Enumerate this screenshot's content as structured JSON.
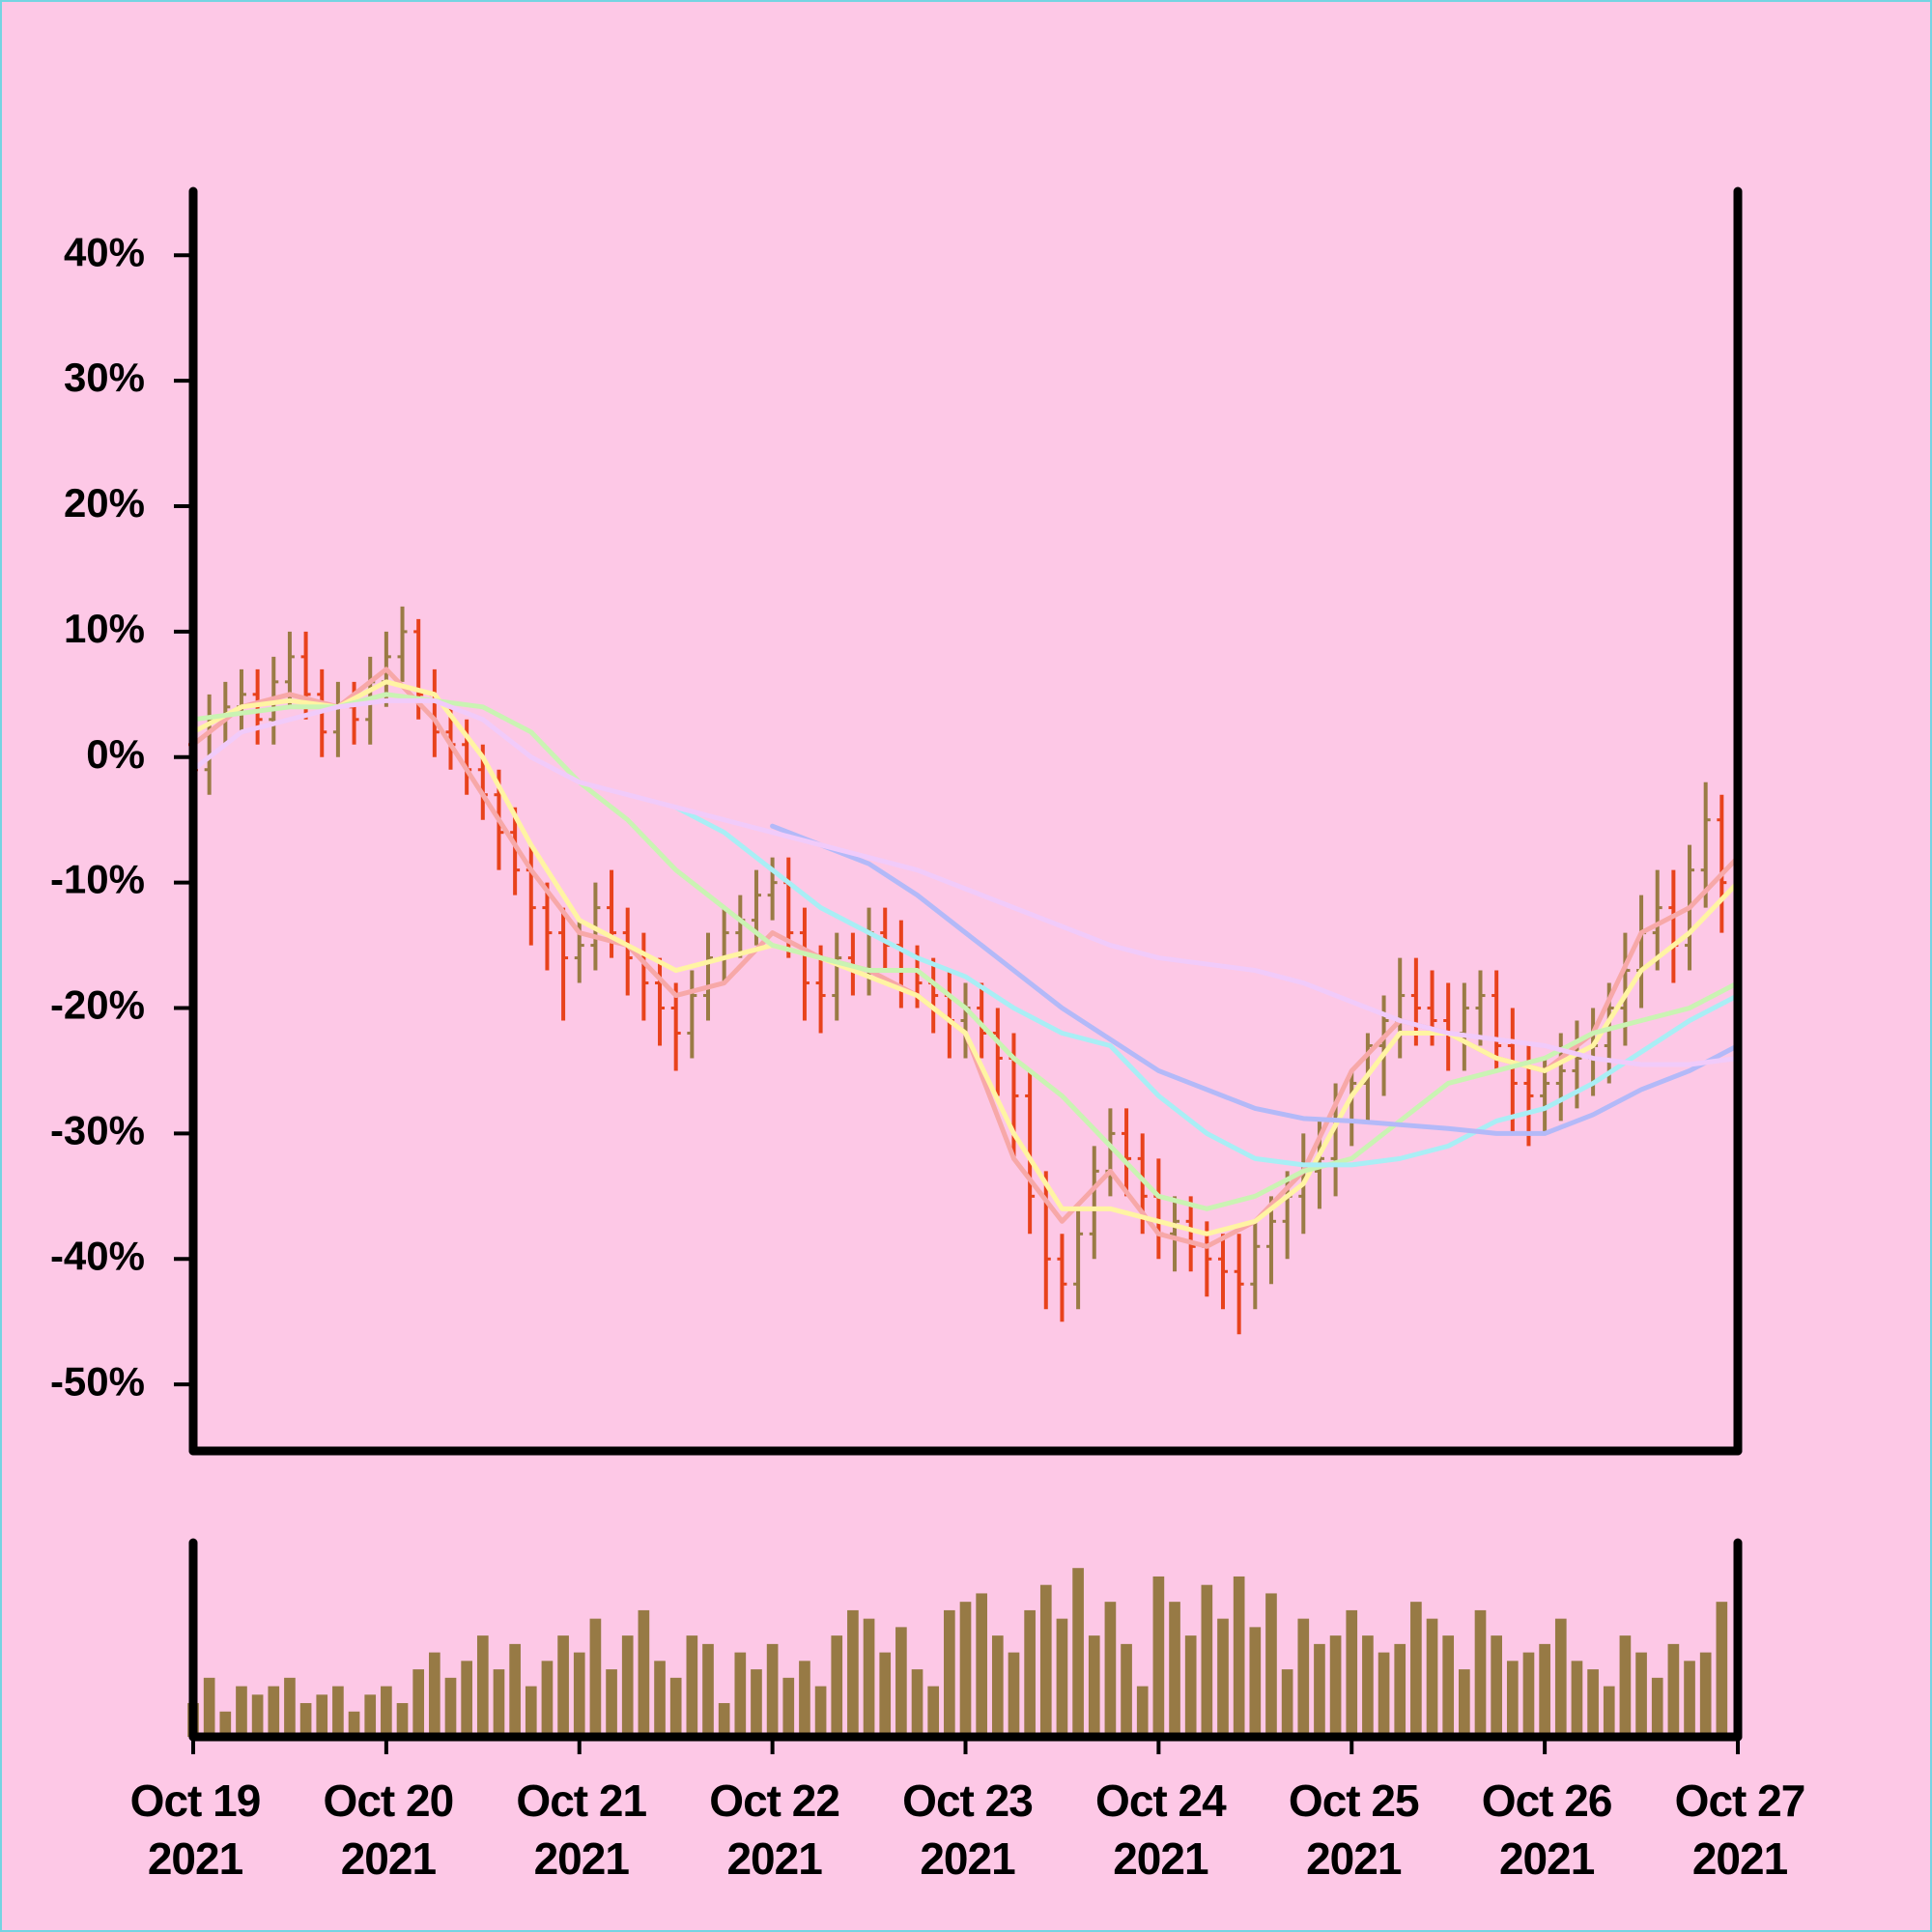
{
  "chart_data": {
    "type": "ohlc",
    "up_color": "#9a7b45",
    "down_color": "#e8421c",
    "xlim": [
      0,
      192
    ],
    "xticks": [
      {
        "value": 0,
        "label": "Oct 19\n2021"
      },
      {
        "value": 24,
        "label": "Oct 20\n2021"
      },
      {
        "value": 48,
        "label": "Oct 21\n2021"
      },
      {
        "value": 72,
        "label": "Oct 22\n2021"
      },
      {
        "value": 96,
        "label": "Oct 23\n2021"
      },
      {
        "value": 120,
        "label": "Oct 24\n2021"
      },
      {
        "value": 144,
        "label": "Oct 25\n2021"
      },
      {
        "value": 168,
        "label": "Oct 26\n2021"
      },
      {
        "value": 192,
        "label": "Oct 27\n2021"
      }
    ],
    "ylim": [
      -55.3,
      45.1
    ],
    "yticks": [
      {
        "value": 40,
        "label": "40%"
      },
      {
        "value": 30,
        "label": "30%"
      },
      {
        "value": 20,
        "label": "20%"
      },
      {
        "value": 10,
        "label": "10%"
      },
      {
        "value": 0,
        "label": "0%"
      },
      {
        "value": -10,
        "label": "-10%"
      },
      {
        "value": -20,
        "label": "-20%"
      },
      {
        "value": -30,
        "label": "-30%"
      },
      {
        "value": -40,
        "label": "-40%"
      },
      {
        "value": -50,
        "label": "-50%"
      }
    ],
    "x": [
      0,
      2,
      4,
      6,
      8,
      10,
      12,
      14,
      16,
      18,
      20,
      22,
      24,
      26,
      28,
      30,
      32,
      34,
      36,
      38,
      40,
      42,
      44,
      46,
      48,
      50,
      52,
      54,
      56,
      58,
      60,
      62,
      64,
      66,
      68,
      70,
      72,
      74,
      76,
      78,
      80,
      82,
      84,
      86,
      88,
      90,
      92,
      94,
      96,
      98,
      100,
      102,
      104,
      106,
      108,
      110,
      112,
      114,
      116,
      118,
      120,
      122,
      124,
      126,
      128,
      130,
      132,
      134,
      136,
      138,
      140,
      142,
      144,
      146,
      148,
      150,
      152,
      154,
      156,
      158,
      160,
      162,
      164,
      166,
      168,
      170,
      172,
      174,
      176,
      178,
      180,
      182,
      184,
      186,
      188,
      190
    ],
    "open": [
      1,
      -1,
      3,
      4,
      5,
      3,
      6,
      8,
      5,
      2,
      4,
      3,
      6,
      8,
      10,
      5,
      2,
      1,
      -1,
      -3,
      -6,
      -9,
      -12,
      -14,
      -16,
      -15,
      -12,
      -14,
      -16,
      -18,
      -20,
      -22,
      -19,
      -16,
      -14,
      -13,
      -11,
      -10,
      -14,
      -18,
      -19,
      -16,
      -17,
      -14,
      -15,
      -17,
      -18,
      -19,
      -21,
      -20,
      -22,
      -24,
      -27,
      -35,
      -40,
      -42,
      -38,
      -33,
      -30,
      -32,
      -35,
      -38,
      -37,
      -39,
      -40,
      -41,
      -42,
      -39,
      -37,
      -35,
      -33,
      -32,
      -29,
      -26,
      -23,
      -21,
      -19,
      -20,
      -21,
      -22,
      -20,
      -19,
      -23,
      -26,
      -27,
      -26,
      -25,
      -24,
      -23,
      -20,
      -17,
      -14,
      -12,
      -15,
      -9,
      -5
    ],
    "high": [
      3,
      5,
      6,
      7,
      7,
      8,
      10,
      10,
      7,
      6,
      6,
      8,
      10,
      12,
      11,
      7,
      4,
      3,
      1,
      -1,
      -4,
      -7,
      -10,
      -12,
      -13,
      -10,
      -9,
      -12,
      -14,
      -16,
      -18,
      -17,
      -14,
      -12,
      -11,
      -9,
      -8,
      -8,
      -12,
      -15,
      -14,
      -14,
      -12,
      -12,
      -13,
      -15,
      -16,
      -17,
      -18,
      -18,
      -20,
      -22,
      -25,
      -33,
      -38,
      -36,
      -31,
      -28,
      -28,
      -30,
      -32,
      -35,
      -35,
      -37,
      -38,
      -38,
      -37,
      -35,
      -33,
      -30,
      -29,
      -26,
      -25,
      -22,
      -19,
      -16,
      -16,
      -17,
      -18,
      -18,
      -17,
      -17,
      -20,
      -23,
      -24,
      -22,
      -21,
      -20,
      -18,
      -14,
      -11,
      -9,
      -9,
      -7,
      -2,
      -3
    ],
    "low": [
      -4,
      -3,
      1,
      2,
      1,
      1,
      4,
      3,
      0,
      0,
      1,
      1,
      4,
      6,
      3,
      0,
      -1,
      -3,
      -5,
      -9,
      -11,
      -15,
      -17,
      -21,
      -18,
      -17,
      -16,
      -19,
      -21,
      -23,
      -25,
      -24,
      -21,
      -18,
      -16,
      -15,
      -13,
      -16,
      -21,
      -22,
      -21,
      -19,
      -19,
      -17,
      -20,
      -20,
      -22,
      -24,
      -24,
      -24,
      -27,
      -32,
      -38,
      -44,
      -45,
      -44,
      -40,
      -35,
      -35,
      -38,
      -40,
      -41,
      -41,
      -43,
      -44,
      -46,
      -44,
      -42,
      -40,
      -38,
      -36,
      -35,
      -31,
      -29,
      -27,
      -24,
      -23,
      -23,
      -25,
      -25,
      -23,
      -25,
      -30,
      -31,
      -30,
      -29,
      -28,
      -27,
      -26,
      -23,
      -20,
      -17,
      -18,
      -17,
      -12,
      -14
    ],
    "close": [
      -1,
      3,
      4,
      5,
      3,
      6,
      8,
      5,
      2,
      4,
      3,
      6,
      8,
      10,
      5,
      2,
      1,
      -1,
      -3,
      -6,
      -9,
      -12,
      -14,
      -16,
      -15,
      -12,
      -14,
      -16,
      -18,
      -20,
      -22,
      -19,
      -16,
      -14,
      -13,
      -11,
      -10,
      -14,
      -18,
      -19,
      -16,
      -17,
      -14,
      -15,
      -17,
      -18,
      -19,
      -21,
      -20,
      -22,
      -24,
      -27,
      -35,
      -40,
      -42,
      -38,
      -33,
      -30,
      -32,
      -35,
      -38,
      -37,
      -39,
      -40,
      -41,
      -42,
      -39,
      -37,
      -35,
      -33,
      -32,
      -29,
      -26,
      -23,
      -21,
      -19,
      -20,
      -21,
      -22,
      -20,
      -19,
      -23,
      -26,
      -27,
      -26,
      -25,
      -24,
      -23,
      -20,
      -17,
      -14,
      -12,
      -15,
      -9,
      -5,
      -10
    ],
    "ma_x": [
      0,
      6,
      12,
      18,
      24,
      30,
      36,
      42,
      48,
      54,
      60,
      66,
      72,
      78,
      84,
      90,
      96,
      102,
      108,
      114,
      120,
      126,
      132,
      138,
      144,
      150,
      156,
      162,
      168,
      174,
      180,
      186,
      192
    ],
    "moving_averages": [
      {
        "color": "#f7a8a8",
        "values": [
          1,
          4,
          5,
          4,
          7,
          3,
          -3,
          -9,
          -14,
          -15,
          -19,
          -18,
          -14,
          -16,
          -17,
          -19,
          -22,
          -32,
          -37,
          -33,
          -38,
          -39,
          -37,
          -33,
          -25,
          -21,
          -22,
          -24,
          -25,
          -22,
          -14,
          -12,
          -8
        ]
      },
      {
        "color": "#fff4a3",
        "values": [
          2,
          4,
          4.5,
          4,
          6,
          5,
          0,
          -7,
          -13,
          -15,
          -17,
          -16,
          -15,
          -16,
          -17.5,
          -19,
          -22,
          -30,
          -36,
          -36,
          -37,
          -38,
          -37,
          -34,
          -27,
          -22,
          -22,
          -24,
          -25,
          -23,
          -17,
          -14,
          -10
        ]
      },
      {
        "color": "#caf3b3",
        "values": [
          3,
          3.5,
          4,
          4,
          5,
          4.5,
          4,
          2,
          -2,
          -5,
          -9,
          -12,
          -15,
          -16,
          -17,
          -17,
          -20,
          -24,
          -27,
          -31,
          -35,
          -36,
          -35,
          -33,
          -32,
          -29,
          -26,
          -25,
          -24,
          -22,
          -21,
          -20,
          -18
        ]
      },
      {
        "color": "#a9eef5",
        "values": [
          null,
          null,
          null,
          null,
          null,
          null,
          null,
          null,
          null,
          null,
          -4,
          -6,
          -9,
          -12,
          -14,
          -16,
          -17.5,
          -20,
          -22,
          -23,
          -27,
          -30,
          -32,
          -32.5,
          -32.5,
          -32,
          -31,
          -29,
          -28,
          -26,
          -23.5,
          -21,
          -19
        ]
      },
      {
        "color": "#b3b9f8",
        "values": [
          null,
          null,
          null,
          null,
          null,
          null,
          null,
          null,
          null,
          null,
          null,
          null,
          -5.5,
          -7,
          -8.5,
          -11,
          -14,
          -17,
          -20,
          -22.5,
          -25,
          -26.5,
          -28,
          -28.8,
          -29,
          -29.3,
          -29.6,
          -30,
          -30,
          -28.5,
          -26.5,
          -25,
          -23
        ]
      },
      {
        "color": "#f1cbfa",
        "values": [
          -1,
          2,
          3,
          4,
          4.5,
          4.5,
          3,
          0,
          -2,
          -3,
          -4,
          -5,
          -6,
          -7,
          -8,
          -9,
          -10.5,
          -12,
          -13.5,
          -15,
          -16,
          -16.5,
          -17,
          -18,
          -19.5,
          -21,
          -22,
          -22.5,
          -23,
          -24,
          -24.5,
          -24.5,
          -24
        ]
      }
    ],
    "volume": {
      "color": "#977a45",
      "ylim": [
        0,
        115
      ],
      "values": [
        20,
        35,
        15,
        30,
        25,
        30,
        35,
        20,
        25,
        30,
        15,
        25,
        30,
        20,
        40,
        50,
        35,
        45,
        60,
        40,
        55,
        30,
        45,
        60,
        50,
        70,
        40,
        60,
        75,
        45,
        35,
        60,
        55,
        20,
        50,
        40,
        55,
        35,
        45,
        30,
        60,
        75,
        70,
        50,
        65,
        40,
        30,
        75,
        80,
        85,
        60,
        50,
        75,
        90,
        70,
        100,
        60,
        80,
        55,
        30,
        95,
        80,
        60,
        90,
        70,
        95,
        65,
        85,
        40,
        70,
        55,
        60,
        75,
        60,
        50,
        55,
        80,
        70,
        60,
        40,
        75,
        60,
        45,
        50,
        55,
        70,
        45,
        40,
        30,
        60,
        50,
        35,
        55,
        45,
        50,
        80
      ]
    }
  }
}
